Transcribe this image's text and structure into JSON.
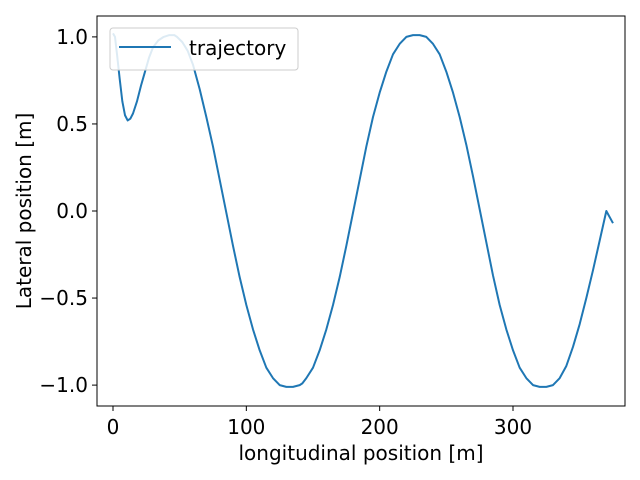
{
  "chart_data": {
    "type": "line",
    "title": "",
    "xlabel": "longitudinal position [m]",
    "ylabel": "Lateral position [m]",
    "xlim": [
      -12,
      384
    ],
    "ylim": [
      -1.12,
      1.12
    ],
    "xticks": [
      0,
      100,
      200,
      300
    ],
    "xtick_labels": [
      "0",
      "100",
      "200",
      "300"
    ],
    "yticks": [
      -1.0,
      -0.5,
      0.0,
      0.5,
      1.0
    ],
    "ytick_labels": [
      "−1.0",
      "−0.5",
      "0.0",
      "0.5",
      "1.0"
    ],
    "grid": false,
    "legend": {
      "position": "top-left",
      "entries": [
        "trajectory"
      ]
    },
    "series": [
      {
        "name": "trajectory",
        "color": "#1f77b4",
        "x": [
          0,
          1.5,
          3,
          5,
          7,
          9,
          11,
          13,
          15,
          18,
          21,
          24,
          27,
          30,
          34,
          38,
          42,
          46,
          48,
          52,
          56,
          60,
          65,
          70,
          75,
          80,
          85,
          90,
          95,
          100,
          105,
          110,
          115,
          120,
          125,
          130,
          135,
          140,
          142,
          145,
          150,
          155,
          160,
          165,
          170,
          175,
          180,
          185,
          190,
          195,
          200,
          205,
          210,
          215,
          220,
          225,
          230,
          235,
          240,
          245,
          250,
          255,
          260,
          265,
          270,
          275,
          280,
          285,
          290,
          295,
          300,
          305,
          310,
          315,
          320,
          325,
          330,
          335,
          340,
          345,
          350,
          355,
          360,
          365,
          370,
          375
        ],
        "y": [
          1.02,
          1.0,
          0.9,
          0.76,
          0.63,
          0.55,
          0.52,
          0.53,
          0.56,
          0.63,
          0.72,
          0.8,
          0.88,
          0.94,
          0.98,
          1.0,
          1.01,
          1.01,
          1.0,
          0.97,
          0.92,
          0.84,
          0.7,
          0.54,
          0.37,
          0.18,
          -0.01,
          -0.2,
          -0.38,
          -0.54,
          -0.68,
          -0.8,
          -0.9,
          -0.96,
          -1.0,
          -1.01,
          -1.01,
          -1.0,
          -0.99,
          -0.96,
          -0.9,
          -0.8,
          -0.68,
          -0.54,
          -0.38,
          -0.2,
          -0.01,
          0.18,
          0.37,
          0.54,
          0.68,
          0.8,
          0.9,
          0.96,
          1.0,
          1.01,
          1.01,
          1.0,
          0.96,
          0.9,
          0.8,
          0.68,
          0.54,
          0.38,
          0.2,
          0.01,
          -0.18,
          -0.37,
          -0.54,
          -0.68,
          -0.8,
          -0.9,
          -0.96,
          -1.0,
          -1.01,
          -1.01,
          -1.0,
          -0.96,
          -0.89,
          -0.78,
          -0.65,
          -0.5,
          -0.34,
          -0.17,
          0.0,
          -0.07
        ]
      }
    ]
  }
}
